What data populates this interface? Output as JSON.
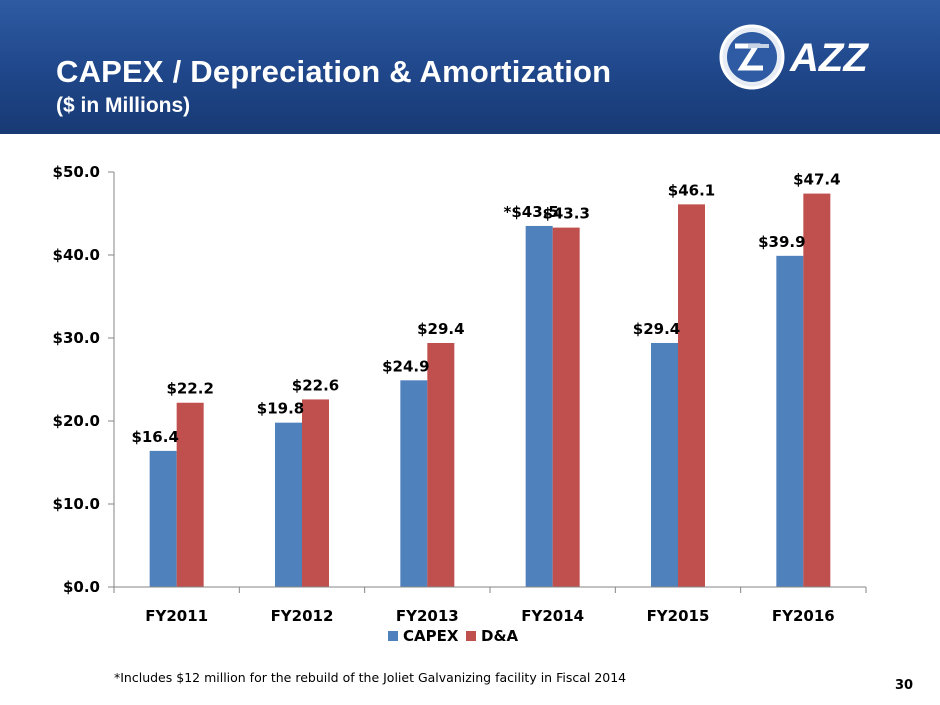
{
  "slide": {
    "title": "CAPEX / Depreciation & Amortization",
    "subtitle": "($ in Millions)",
    "logo_text": "AZZ",
    "footnote": "*Includes $12 million for the rebuild of the Joliet Galvanizing facility in Fiscal 2014",
    "page_number": "30"
  },
  "colors": {
    "header": "#1f4689",
    "capex": "#4f81bd",
    "da": "#c0504d",
    "axis": "#868686"
  },
  "chart_data": {
    "type": "bar",
    "title": "",
    "xlabel": "",
    "ylabel": "",
    "categories": [
      "FY2011",
      "FY2012",
      "FY2013",
      "FY2014",
      "FY2015",
      "FY2016"
    ],
    "series": [
      {
        "name": "CAPEX",
        "values": [
          16.4,
          19.8,
          24.9,
          43.5,
          29.4,
          39.9
        ],
        "labels": [
          "$16.4",
          "$19.8",
          "$24.9",
          "*$43.5",
          "$29.4",
          "$39.9"
        ]
      },
      {
        "name": "D&A",
        "values": [
          22.2,
          22.6,
          29.4,
          43.3,
          46.1,
          47.4
        ],
        "labels": [
          "$22.2",
          "$22.6",
          "$29.4",
          "$43.3",
          "$46.1",
          "$47.4"
        ]
      }
    ],
    "ylim": [
      0,
      50
    ],
    "yticks": [
      0,
      10,
      20,
      30,
      40,
      50
    ],
    "ytick_labels": [
      "$0.0",
      "$10.0",
      "$20.0",
      "$30.0",
      "$40.0",
      "$50.0"
    ],
    "grid": false,
    "legend": "bottom"
  }
}
